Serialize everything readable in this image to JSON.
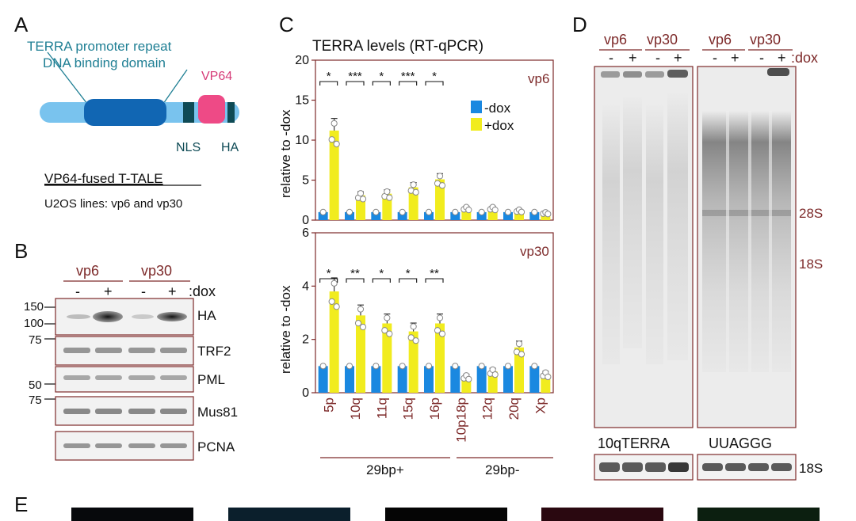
{
  "panel_labels": {
    "a": "A",
    "b": "B",
    "c": "C",
    "d": "D",
    "e": "E"
  },
  "colors": {
    "maroon": "#7d2a2a",
    "teal": "#1f7f94",
    "light_blue": "#79c3ee",
    "dark_blue": "#1166b3",
    "navy": "#0e4a55",
    "pink": "#ee4a86",
    "dox_minus": "#1a88e0",
    "dox_plus": "#f1ec1e"
  },
  "panel_a": {
    "title1": "TERRA promoter repeat",
    "title2": "DNA binding domain",
    "vp64": "VP64",
    "nls": "NLS",
    "ha": "HA",
    "caption": "VP64-fused T-TALE",
    "lines": "U2OS lines: vp6 and vp30"
  },
  "panel_b": {
    "groups": [
      "vp6",
      "vp30"
    ],
    "dox_signs": [
      "-",
      "+",
      "-",
      "+"
    ],
    "dox": ":dox",
    "mw": [
      "150",
      "100",
      "75",
      "50",
      "75"
    ],
    "blots": [
      "HA",
      "TRF2",
      "PML",
      "Mus81",
      "PCNA"
    ]
  },
  "chart_data": [
    {
      "type": "bar",
      "title": "TERRA levels (RT-qPCR)",
      "panel": "vp6",
      "ylabel": "relative to -dox",
      "ylim": [
        0,
        20
      ],
      "yticks": [
        "0",
        "5",
        "10",
        "15",
        "20"
      ],
      "categories": [
        "5p",
        "10q",
        "11q",
        "15q",
        "16p",
        "10p18p",
        "12q",
        "20q",
        "Xp"
      ],
      "series": [
        {
          "name": "-dox",
          "values": [
            1.0,
            1.0,
            1.0,
            1.0,
            1.0,
            1.0,
            1.0,
            1.0,
            1.0
          ]
        },
        {
          "name": "+dox",
          "values": [
            11.2,
            3.1,
            3.3,
            4.1,
            5.1,
            1.5,
            1.5,
            1.2,
            0.9
          ]
        }
      ],
      "significance": [
        "*",
        "***",
        "*",
        "***",
        "*"
      ],
      "legend": [
        "-dox",
        "+dox"
      ]
    },
    {
      "type": "bar",
      "panel": "vp30",
      "ylabel": "relative to -dox",
      "ylim": [
        0,
        6
      ],
      "yticks": [
        "0",
        "2",
        "4",
        "6"
      ],
      "categories": [
        "5p",
        "10q",
        "11q",
        "15q",
        "16p",
        "10p18p",
        "12q",
        "20q",
        "Xp"
      ],
      "series": [
        {
          "name": "-dox",
          "values": [
            1.0,
            1.0,
            1.0,
            1.0,
            1.0,
            1.0,
            1.0,
            1.0,
            1.0
          ]
        },
        {
          "name": "+dox",
          "values": [
            3.8,
            2.9,
            2.6,
            2.3,
            2.6,
            0.6,
            0.8,
            1.7,
            0.7
          ]
        }
      ],
      "significance": [
        "*",
        "**",
        "*",
        "*",
        "**"
      ],
      "groups": [
        "29bp+",
        "29bp-"
      ]
    }
  ],
  "panel_d": {
    "groups": [
      "vp6",
      "vp30",
      "vp6",
      "vp30"
    ],
    "dox_signs": [
      "-",
      "+",
      "-",
      "+",
      "-",
      "+",
      "-",
      "+"
    ],
    "dox": ":dox",
    "markers": [
      "28S",
      "18S"
    ],
    "probes": [
      "10qTERRA",
      "UUAGGG"
    ],
    "loading": "18S"
  }
}
